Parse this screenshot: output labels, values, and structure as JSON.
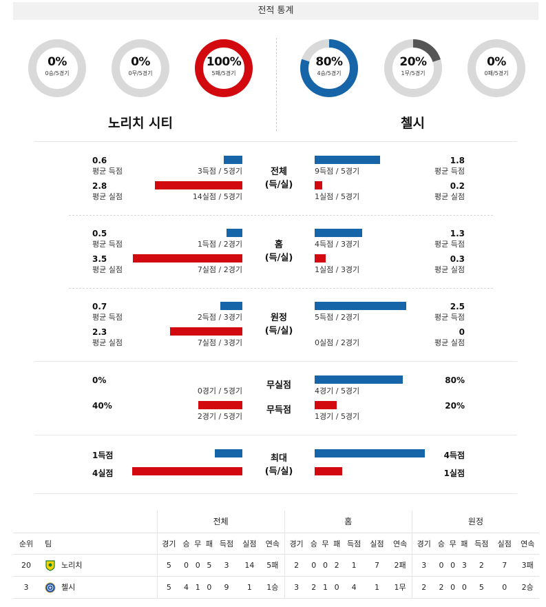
{
  "header": {
    "title": "전적 통계"
  },
  "donuts": [
    {
      "pct_label": "0%",
      "sub": "0승/5경기",
      "fraction": 0,
      "color": "#555555"
    },
    {
      "pct_label": "0%",
      "sub": "0무/5경기",
      "fraction": 0,
      "color": "#555555"
    },
    {
      "pct_label": "100%",
      "sub": "5패/5경기",
      "fraction": 1,
      "color": "#d20a10"
    },
    {
      "pct_label": "80%",
      "sub": "4승/5경기",
      "fraction": 0.8,
      "color": "#1565a8"
    },
    {
      "pct_label": "20%",
      "sub": "1무/5경기",
      "fraction": 0.2,
      "color": "#555555"
    },
    {
      "pct_label": "0%",
      "sub": "0패/5경기",
      "fraction": 0,
      "color": "#555555"
    }
  ],
  "teams": {
    "home": "노리치 시티",
    "away": "첼시"
  },
  "colors": {
    "goals": "#1565a8",
    "conceded": "#d20a10"
  },
  "sections": [
    {
      "label_1": "전체",
      "label_2": "(득/실)",
      "home_goals": {
        "value": "0.6",
        "caption": "평균 득점",
        "detail": "3득점 / 5경기",
        "ratio": 0.6
      },
      "home_conc": {
        "value": "2.8",
        "caption": "평균 실점",
        "detail": "14실점 / 5경기",
        "ratio": 2.8
      },
      "away_goals": {
        "value": "1.8",
        "caption": "평균 득점",
        "detail": "9득점 / 5경기",
        "ratio": 1.8
      },
      "away_conc": {
        "value": "0.2",
        "caption": "평균 실점",
        "detail": "1실점 / 5경기",
        "ratio": 0.2
      }
    },
    {
      "label_1": "홈",
      "label_2": "(득/실)",
      "home_goals": {
        "value": "0.5",
        "caption": "평균 득점",
        "detail": "1득점 / 2경기",
        "ratio": 0.5
      },
      "home_conc": {
        "value": "3.5",
        "caption": "평균 실점",
        "detail": "7실점 / 2경기",
        "ratio": 3.5
      },
      "away_goals": {
        "value": "1.3",
        "caption": "평균 득점",
        "detail": "4득점 / 3경기",
        "ratio": 1.3
      },
      "away_conc": {
        "value": "0.3",
        "caption": "평균 실점",
        "detail": "1실점 / 3경기",
        "ratio": 0.3
      }
    },
    {
      "label_1": "원정",
      "label_2": "(득/실)",
      "home_goals": {
        "value": "0.7",
        "caption": "평균 득점",
        "detail": "2득점 / 3경기",
        "ratio": 0.7
      },
      "home_conc": {
        "value": "2.3",
        "caption": "평균 실점",
        "detail": "7실점 / 3경기",
        "ratio": 2.3
      },
      "away_goals": {
        "value": "2.5",
        "caption": "평균 득점",
        "detail": "5득점 / 2경기",
        "ratio": 2.5
      },
      "away_conc": {
        "value": "0",
        "caption": "평균 실점",
        "detail": "0실점 / 2경기",
        "ratio": 0
      }
    }
  ],
  "clean": {
    "label_clean": "무실점",
    "label_blank": "무득점",
    "home_clean": {
      "value": "0%",
      "detail": "0경기 / 5경기",
      "ratio": 0
    },
    "home_blank": {
      "value": "40%",
      "detail": "2경기 / 5경기",
      "ratio": 0.4
    },
    "away_clean": {
      "value": "80%",
      "detail": "4경기 / 5경기",
      "ratio": 0.8
    },
    "away_blank": {
      "value": "20%",
      "detail": "1경기 / 5경기",
      "ratio": 0.2
    }
  },
  "maximum": {
    "label_1": "최대",
    "label_2": "(득/실)",
    "home_goals": {
      "value": "1득점",
      "ratio": 1
    },
    "home_conc": {
      "value": "4실점",
      "ratio": 4
    },
    "away_goals": {
      "value": "4득점",
      "ratio": 4
    },
    "away_conc": {
      "value": "1실점",
      "ratio": 1
    }
  },
  "table": {
    "groups": [
      "전체",
      "홈",
      "원정"
    ],
    "rank_header": "순위",
    "team_header": "팀",
    "sub_headers": [
      "경기",
      "승",
      "무",
      "패",
      "득점",
      "실점",
      "연속"
    ],
    "rows": [
      {
        "rank": "20",
        "team": "노리치",
        "crest": "norwich-crest-icon",
        "overall": [
          "5",
          "0",
          "0",
          "5",
          "3",
          "14",
          "5패"
        ],
        "home": [
          "2",
          "0",
          "0",
          "2",
          "1",
          "7",
          "2패"
        ],
        "away": [
          "3",
          "0",
          "0",
          "3",
          "2",
          "7",
          "3패"
        ]
      },
      {
        "rank": "3",
        "team": "첼시",
        "crest": "chelsea-crest-icon",
        "overall": [
          "5",
          "4",
          "1",
          "0",
          "9",
          "1",
          "1승"
        ],
        "home": [
          "3",
          "2",
          "1",
          "0",
          "4",
          "1",
          "1무"
        ],
        "away": [
          "2",
          "2",
          "0",
          "0",
          "5",
          "0",
          "2승"
        ]
      }
    ]
  }
}
